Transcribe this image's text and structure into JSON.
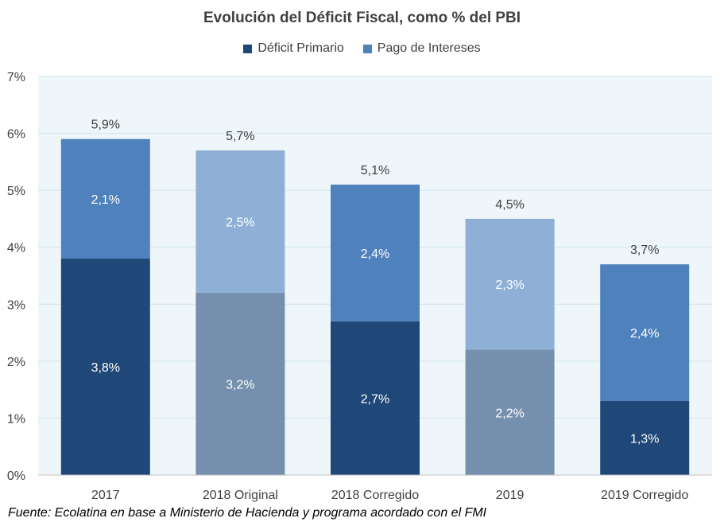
{
  "chart_data": {
    "type": "bar",
    "stacked": true,
    "title": "Evolución del Déficit Fiscal, como % del PBI",
    "categories": [
      "2017",
      "2018 Original",
      "2018 Corregido",
      "2019",
      "2019 Corregido"
    ],
    "series": [
      {
        "name": "Déficit Primario",
        "values": [
          3.8,
          3.2,
          2.7,
          2.2,
          1.3
        ],
        "labels": [
          "3,8%",
          "3,2%",
          "2,7%",
          "2,2%",
          "1,3%"
        ],
        "color": "#1f4778",
        "bar_colors": [
          "#1f4778",
          "#7490ae",
          "#1f4778",
          "#7490ae",
          "#1f4778"
        ]
      },
      {
        "name": "Pago de Intereses",
        "values": [
          2.1,
          2.5,
          2.4,
          2.3,
          2.4
        ],
        "labels": [
          "2,1%",
          "2,5%",
          "2,4%",
          "2,3%",
          "2,4%"
        ],
        "color": "#4f81bd",
        "bar_colors": [
          "#4f81bd",
          "#8eafd6",
          "#4f81bd",
          "#8eafd6",
          "#4f81bd"
        ]
      }
    ],
    "totals": [
      5.9,
      5.7,
      5.1,
      4.5,
      3.7
    ],
    "total_labels": [
      "5,9%",
      "5,7%",
      "5,1%",
      "4,5%",
      "3,7%"
    ],
    "ylim": [
      0,
      7
    ],
    "yticks": [
      0,
      1,
      2,
      3,
      4,
      5,
      6,
      7
    ],
    "ytick_labels": [
      "0%",
      "1%",
      "2%",
      "3%",
      "4%",
      "5%",
      "6%",
      "7%"
    ],
    "grid": true,
    "legend_position": "top",
    "plot_background": "#eef6f9",
    "gridline_color": "#d0e6ee"
  },
  "source": "Fuente: Ecolatina en base a Ministerio de Hacienda y programa acordado con el FMI"
}
